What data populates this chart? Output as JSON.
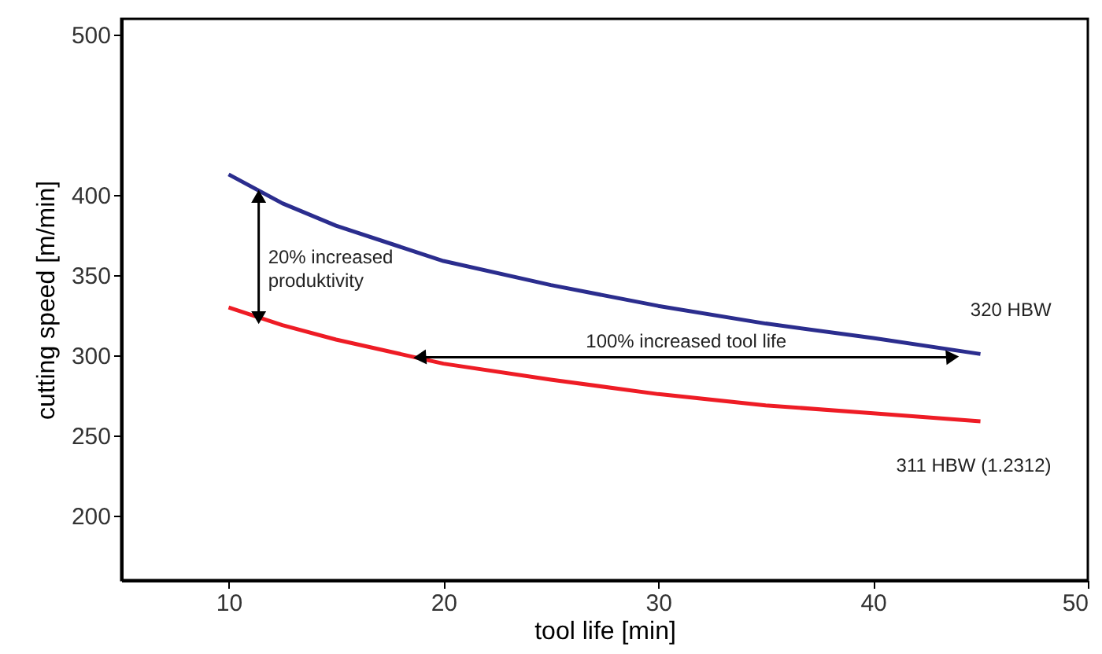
{
  "chart_data": {
    "type": "line",
    "xlabel": "tool life [min]",
    "ylabel": "cutting speed [m/min]",
    "x": [
      10,
      12.5,
      15,
      20,
      25,
      30,
      35,
      40,
      45
    ],
    "series": [
      {
        "name": "320 HBW",
        "color": "#2b2d8e",
        "values": [
          413,
          395,
          381,
          359,
          344,
          331,
          320,
          311,
          301
        ]
      },
      {
        "name": "311 HBW (1.2312)",
        "color": "#ee1c25",
        "values": [
          330,
          319,
          310,
          295,
          285,
          276,
          269,
          264,
          259
        ]
      },
      {
        "type": "line",
        "marker": "triangle",
        "color": "#000000",
        "x": [
          11.4,
          11.4
        ],
        "values": [
          325,
          398
        ]
      },
      {
        "type": "line",
        "marker": "triangle",
        "color": "#000000",
        "x": [
          19,
          43.6
        ],
        "values": [
          299,
          299
        ]
      }
    ],
    "annotations": [
      "20% increased produktivity",
      "100% increased tool life"
    ],
    "xlim": [
      5,
      50
    ],
    "xticks": [
      10,
      20,
      30,
      40,
      50
    ],
    "ylim": [
      160,
      510
    ],
    "yticks": [
      200,
      250,
      300,
      350,
      400,
      500
    ],
    "grid": false,
    "marker": "none",
    "line_style": "solid"
  }
}
